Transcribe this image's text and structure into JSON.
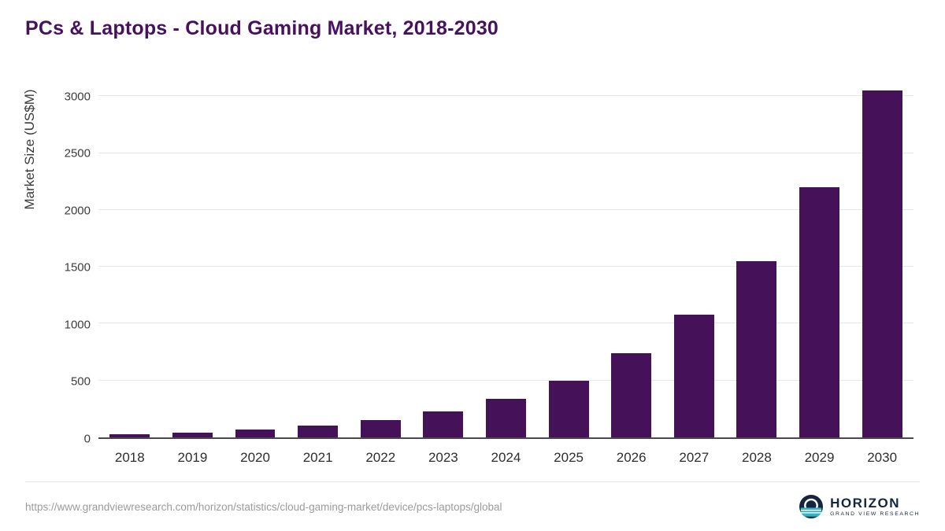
{
  "chart_data": {
    "type": "bar",
    "title": "PCs & Laptops - Cloud Gaming Market, 2018-2030",
    "categories": [
      "2018",
      "2019",
      "2020",
      "2021",
      "2022",
      "2023",
      "2024",
      "2025",
      "2026",
      "2027",
      "2028",
      "2029",
      "2030"
    ],
    "values": [
      30,
      45,
      70,
      105,
      155,
      230,
      340,
      500,
      740,
      1080,
      1550,
      2200,
      3050
    ],
    "xlabel": "",
    "ylabel": "Market Size (US$M)",
    "ylim": [
      0,
      3100
    ],
    "yticks": [
      0,
      500,
      1000,
      1500,
      2000,
      2500,
      3000
    ],
    "grid": true,
    "legend": "none",
    "bar_color": "#45125a",
    "title_color": "#47115f"
  },
  "footer": {
    "source_url": "https://www.grandviewresearch.com/horizon/statistics/cloud-gaming-market/device/pcs-laptops/global",
    "logo": {
      "name": "HORIZON",
      "subtitle": "GRAND VIEW RESEARCH",
      "icon": "horizon-globe-icon",
      "icon_colors": {
        "circle": "#15253f",
        "ring": "#ffffff",
        "water": "#2fb4c4"
      }
    }
  }
}
